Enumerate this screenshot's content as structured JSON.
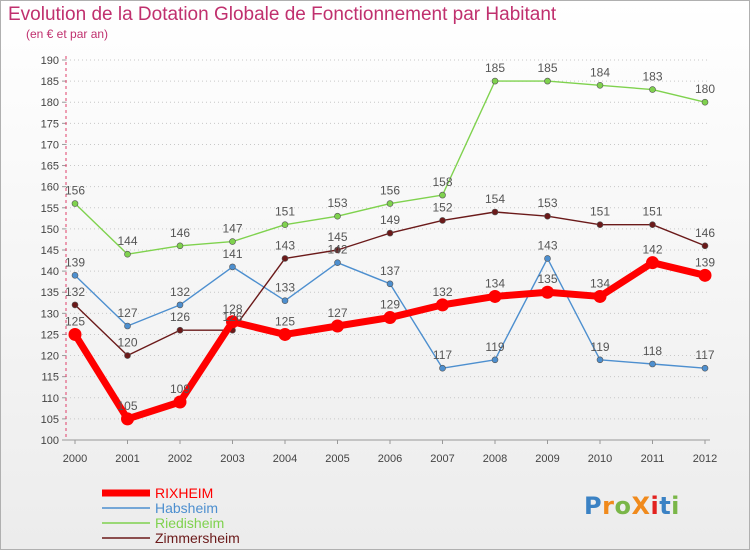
{
  "title": "Evolution de la Dotation Globale de Fonctionnement par Habitant",
  "subtitle": "(en € et par an)",
  "logo": {
    "text": "ProXiti",
    "colors": [
      "#3b82c4",
      "#f08a1c",
      "#7ab648",
      "#e2221f"
    ]
  },
  "chart_data": {
    "type": "line",
    "title": "Evolution de la Dotation Globale de Fonctionnement par Habitant",
    "subtitle": "(en € et par an)",
    "xlabel": "",
    "ylabel": "",
    "x": [
      "2000",
      "2001",
      "2002",
      "2003",
      "2004",
      "2005",
      "2006",
      "2007",
      "2008",
      "2009",
      "2010",
      "2011",
      "2012"
    ],
    "ylim": [
      100,
      190
    ],
    "yticks": [
      100,
      105,
      110,
      115,
      120,
      125,
      130,
      135,
      140,
      145,
      150,
      155,
      160,
      165,
      170,
      175,
      180,
      185,
      190
    ],
    "grid": "horizontal dotted",
    "legend_position": "bottom-left",
    "series": [
      {
        "name": "RIXHEIM",
        "color": "#ff0000",
        "values": [
          125,
          105,
          109,
          128,
          125,
          127,
          129,
          132,
          134,
          135,
          134,
          142,
          139
        ]
      },
      {
        "name": "Habsheim",
        "color": "#4d8fcf",
        "values": [
          139,
          127,
          132,
          141,
          133,
          142,
          137,
          117,
          119,
          143,
          119,
          118,
          117
        ]
      },
      {
        "name": "Riedisheim",
        "color": "#7fd24e",
        "values": [
          156,
          144,
          146,
          147,
          151,
          153,
          156,
          158,
          185,
          185,
          184,
          183,
          180
        ]
      },
      {
        "name": "Zimmersheim",
        "color": "#6b1a1a",
        "values": [
          132,
          120,
          126,
          126,
          143,
          145,
          149,
          152,
          154,
          153,
          151,
          151,
          146
        ]
      }
    ]
  }
}
